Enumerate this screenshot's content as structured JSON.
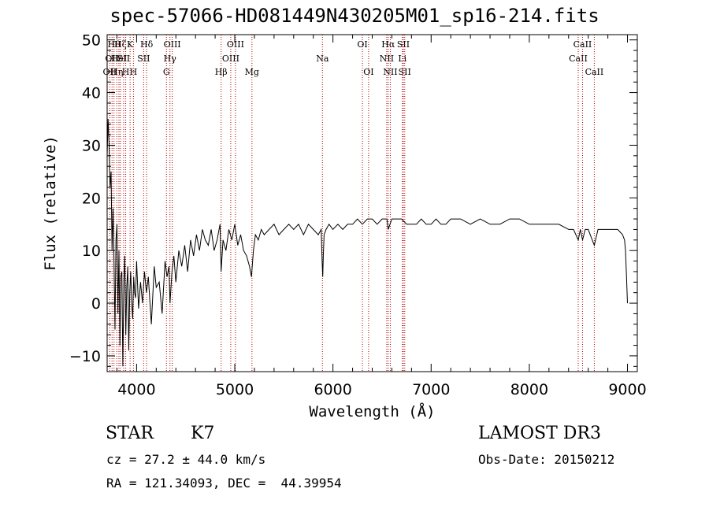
{
  "chart_data": {
    "type": "line",
    "title": "spec-57066-HD081449N430205M01_sp16-214.fits",
    "xlabel": "Wavelength (Å)",
    "ylabel": "Flux (relative)",
    "xlim": [
      3700,
      9100
    ],
    "ylim": [
      -13,
      51
    ],
    "xticks": [
      4000,
      5000,
      6000,
      7000,
      8000,
      9000
    ],
    "yticks": [
      -10,
      0,
      10,
      20,
      30,
      40,
      50
    ],
    "line_color": "#000000",
    "marker_color": "#b30000",
    "series": [
      {
        "name": "flux",
        "x": [
          3700,
          3710,
          3720,
          3730,
          3740,
          3750,
          3760,
          3770,
          3780,
          3790,
          3800,
          3810,
          3820,
          3830,
          3840,
          3850,
          3860,
          3870,
          3880,
          3890,
          3900,
          3910,
          3920,
          3930,
          3940,
          3950,
          3960,
          3970,
          3980,
          3990,
          4000,
          4020,
          4040,
          4060,
          4080,
          4100,
          4120,
          4150,
          4180,
          4200,
          4230,
          4260,
          4290,
          4310,
          4330,
          4340,
          4360,
          4380,
          4400,
          4430,
          4460,
          4490,
          4520,
          4550,
          4580,
          4610,
          4640,
          4670,
          4700,
          4730,
          4760,
          4790,
          4820,
          4850,
          4861,
          4880,
          4910,
          4940,
          4970,
          5000,
          5030,
          5060,
          5090,
          5120,
          5150,
          5170,
          5190,
          5210,
          5240,
          5270,
          5300,
          5350,
          5400,
          5450,
          5500,
          5550,
          5600,
          5650,
          5700,
          5750,
          5800,
          5850,
          5880,
          5890,
          5896,
          5902,
          5910,
          5930,
          5960,
          6000,
          6050,
          6100,
          6150,
          6200,
          6250,
          6300,
          6350,
          6400,
          6450,
          6500,
          6550,
          6563,
          6600,
          6650,
          6700,
          6750,
          6800,
          6850,
          6900,
          6950,
          7000,
          7050,
          7100,
          7150,
          7200,
          7300,
          7400,
          7500,
          7600,
          7700,
          7800,
          7900,
          8000,
          8100,
          8200,
          8300,
          8400,
          8450,
          8498,
          8520,
          8542,
          8570,
          8600,
          8620,
          8662,
          8700,
          8750,
          8800,
          8850,
          8900,
          8950,
          8970,
          8980,
          8990,
          9000
        ],
        "values": [
          28,
          35,
          30,
          22,
          25,
          10,
          18,
          8,
          -5,
          12,
          15,
          -2,
          10,
          -8,
          5,
          6,
          -12,
          4,
          9,
          -6,
          3,
          7,
          -9,
          2,
          6,
          0,
          -3,
          5,
          2,
          1,
          8,
          -1,
          4,
          0,
          6,
          2,
          5,
          -4,
          7,
          3,
          4,
          -2,
          8,
          5,
          7,
          0,
          6,
          9,
          4,
          10,
          7,
          11,
          6,
          12,
          9,
          13,
          10,
          14,
          12,
          11,
          14,
          10,
          12,
          15,
          6,
          12,
          10,
          14,
          12,
          15,
          11,
          13,
          10,
          9,
          7,
          5,
          10,
          13,
          12,
          14,
          13,
          14,
          15,
          13,
          14,
          15,
          14,
          15,
          13,
          15,
          14,
          13,
          14,
          8,
          5,
          9,
          13,
          14,
          15,
          14,
          15,
          14,
          15,
          15,
          16,
          15,
          16,
          16,
          15,
          16,
          16,
          14,
          16,
          16,
          16,
          15,
          15,
          15,
          16,
          15,
          15,
          16,
          15,
          15,
          16,
          16,
          15,
          16,
          15,
          15,
          16,
          16,
          15,
          15,
          15,
          15,
          14,
          14,
          12,
          14,
          12,
          14,
          14,
          13,
          11,
          14,
          14,
          14,
          14,
          14,
          13,
          12,
          10,
          5,
          0
        ]
      }
    ],
    "lines": [
      {
        "x": 3727,
        "labels": [
          "OII"
        ],
        "row": [
          2
        ]
      },
      {
        "x": 3750,
        "labels": [
          "OII"
        ],
        "row": [
          1
        ]
      },
      {
        "x": 3770,
        "labels": [
          "Hθ"
        ],
        "row": [
          0
        ]
      },
      {
        "x": 3798,
        "labels": [
          "Hη"
        ],
        "row": [
          2
        ]
      },
      {
        "x": 3820,
        "labels": [
          "HeI"
        ],
        "row": [
          1
        ]
      },
      {
        "x": 3835,
        "labels": [
          "Hζ"
        ],
        "row": [
          0
        ]
      },
      {
        "x": 3868,
        "labels": [
          "SII"
        ],
        "row": [
          1
        ]
      },
      {
        "x": 3889,
        "labels": [
          "H"
        ],
        "row": [
          2
        ]
      },
      {
        "x": 3934,
        "labels": [
          "K"
        ],
        "row": [
          0
        ]
      },
      {
        "x": 3968,
        "labels": [
          "H"
        ],
        "row": [
          2
        ]
      },
      {
        "x": 4072,
        "labels": [
          "SII"
        ],
        "row": [
          1
        ]
      },
      {
        "x": 4102,
        "labels": [
          "Hδ"
        ],
        "row": [
          0
        ]
      },
      {
        "x": 4304,
        "labels": [
          "G"
        ],
        "row": [
          2
        ]
      },
      {
        "x": 4340,
        "labels": [
          "Hγ"
        ],
        "row": [
          1
        ]
      },
      {
        "x": 4363,
        "labels": [
          "OIII"
        ],
        "row": [
          0
        ]
      },
      {
        "x": 4861,
        "labels": [
          "Hβ"
        ],
        "row": [
          2
        ]
      },
      {
        "x": 4959,
        "labels": [
          "OIII"
        ],
        "row": [
          1
        ]
      },
      {
        "x": 5007,
        "labels": [
          "OIII"
        ],
        "row": [
          0
        ]
      },
      {
        "x": 5175,
        "labels": [
          "Mg"
        ],
        "row": [
          2
        ]
      },
      {
        "x": 5893,
        "labels": [
          "Na"
        ],
        "row": [
          1
        ]
      },
      {
        "x": 6300,
        "labels": [
          "OI"
        ],
        "row": [
          0
        ]
      },
      {
        "x": 6363,
        "labels": [
          "OI"
        ],
        "row": [
          2
        ]
      },
      {
        "x": 6548,
        "labels": [
          "NII"
        ],
        "row": [
          1
        ]
      },
      {
        "x": 6563,
        "labels": [
          "Hα"
        ],
        "row": [
          0
        ]
      },
      {
        "x": 6584,
        "labels": [
          "NII"
        ],
        "row": [
          2
        ]
      },
      {
        "x": 6707,
        "labels": [
          "Li"
        ],
        "row": [
          1
        ]
      },
      {
        "x": 6717,
        "labels": [
          "SII"
        ],
        "row": [
          0
        ]
      },
      {
        "x": 6731,
        "labels": [
          "SII"
        ],
        "row": [
          2
        ]
      },
      {
        "x": 8498,
        "labels": [
          "CaII"
        ],
        "row": [
          1
        ]
      },
      {
        "x": 8542,
        "labels": [
          "CaII"
        ],
        "row": [
          0
        ]
      },
      {
        "x": 8662,
        "labels": [
          "CaII"
        ],
        "row": [
          2
        ]
      }
    ]
  },
  "info": {
    "class": "STAR",
    "subclass": "K7",
    "survey": "LAMOST DR3",
    "cz": "cz = 27.2 ± 44.0 km/s",
    "obs_date": "Obs-Date: 20150212",
    "coords": "RA = 121.34093, DEC =  44.39954"
  }
}
